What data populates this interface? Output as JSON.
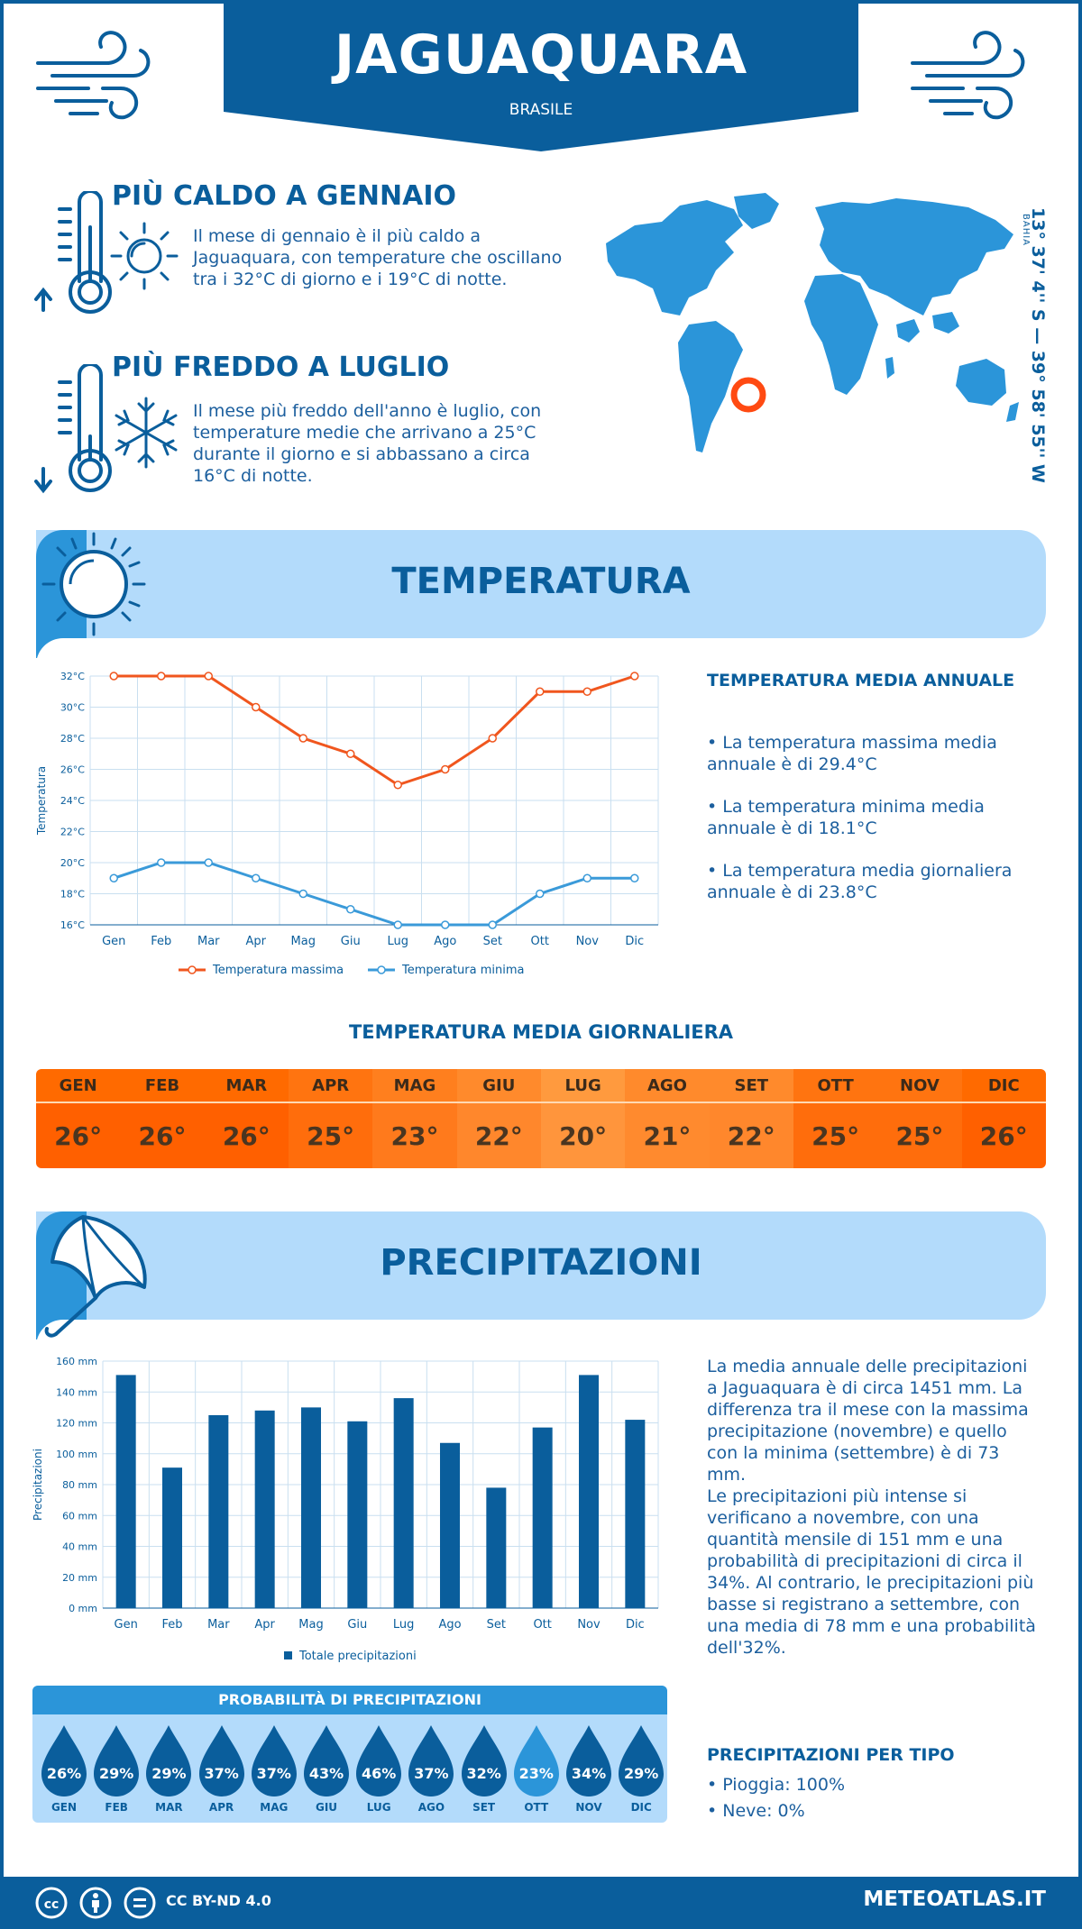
{
  "header": {
    "city": "JAGUAQUARA",
    "country": "BRASILE"
  },
  "hot": {
    "title": "PIÙ CALDO A GENNAIO",
    "text": "Il mese di gennaio è il più caldo a Jaguaquara, con temperature che oscillano tra i 32°C di giorno e i 19°C di notte."
  },
  "cold": {
    "title": "PIÙ FREDDO A LUGLIO",
    "text": "Il mese più freddo dell'anno è luglio, con temperature medie che arrivano a 25°C durante il giorno e si abbassano a circa 16°C di notte."
  },
  "location": {
    "coordinates": "13° 37' 4'' S — 39° 58' 55'' W",
    "region": "BAHIA"
  },
  "sections": {
    "temperature_title": "TEMPERATURA",
    "precipitation_title": "PRECIPITAZIONI"
  },
  "temperature_summary": {
    "title": "TEMPERATURA MEDIA ANNUALE",
    "items": [
      "• La temperatura massima media annuale è di 29.4°C",
      "• La temperatura minima media annuale è di 18.1°C",
      "• La temperatura media giornaliera annuale è di 23.8°C"
    ]
  },
  "precipitation_summary": {
    "para1": "La media annuale delle precipitazioni a Jaguaquara è di circa 1451 mm. La differenza tra il mese con la massima precipitazione (novembre) e quello con la minima (settembre) è di 73 mm.",
    "para2": "Le precipitazioni più intense si verificano a novembre, con una quantità mensile di 151 mm e una probabilità di precipitazioni di circa il 34%. Al contrario, le precipitazioni più basse si registrano a settembre, con una media di 78 mm e una probabilità dell'32%."
  },
  "daily": {
    "title": "TEMPERATURA MEDIA GIORNALIERA",
    "months": [
      "GEN",
      "FEB",
      "MAR",
      "APR",
      "MAG",
      "GIU",
      "LUG",
      "AGO",
      "SET",
      "OTT",
      "NOV",
      "DIC"
    ],
    "values": [
      "26°",
      "26°",
      "26°",
      "25°",
      "23°",
      "22°",
      "20°",
      "21°",
      "22°",
      "25°",
      "25°",
      "26°"
    ],
    "head_colors": [
      "#ff6a00",
      "#ff6a00",
      "#ff6a00",
      "#ff7410",
      "#ff7f1e",
      "#ff8a2c",
      "#ff9a3e",
      "#ff8a2c",
      "#ff8a2c",
      "#ff7410",
      "#ff7410",
      "#ff6a00"
    ],
    "val_colors": [
      "#ff6000",
      "#ff6000",
      "#ff6000",
      "#ff6d0c",
      "#ff7a1c",
      "#ff872c",
      "#ff953c",
      "#ff8a2e",
      "#ff872c",
      "#ff6d0c",
      "#ff6d0c",
      "#ff6000"
    ]
  },
  "probability": {
    "title": "PROBABILITÀ DI PRECIPITAZIONI",
    "months": [
      "GEN",
      "FEB",
      "MAR",
      "APR",
      "MAG",
      "GIU",
      "LUG",
      "AGO",
      "SET",
      "OTT",
      "NOV",
      "DIC"
    ],
    "values": [
      "26%",
      "29%",
      "29%",
      "37%",
      "37%",
      "43%",
      "46%",
      "37%",
      "32%",
      "23%",
      "34%",
      "29%"
    ]
  },
  "precip_type": {
    "title": "PRECIPITAZIONI PER TIPO",
    "rain": "• Pioggia: 100%",
    "snow": "• Neve: 0%"
  },
  "footer": {
    "license": "CC BY-ND 4.0",
    "site": "METEOATLAS.IT"
  },
  "colors": {
    "brand": "#0a5e9c",
    "max_line": "#f0561e",
    "min_line": "#3a9ad9",
    "bars": "#0a5e9c",
    "band": "#b3dbfb"
  },
  "chart_data": [
    {
      "type": "line",
      "categories": [
        "Gen",
        "Feb",
        "Mar",
        "Apr",
        "Mag",
        "Giu",
        "Lug",
        "Ago",
        "Set",
        "Ott",
        "Nov",
        "Dic"
      ],
      "series": [
        {
          "name": "Temperatura massima",
          "values": [
            32,
            32,
            32,
            30,
            28,
            27,
            25,
            26,
            28,
            31,
            31,
            32
          ]
        },
        {
          "name": "Temperatura minima",
          "values": [
            19,
            20,
            20,
            19,
            18,
            17,
            16,
            16,
            16,
            18,
            19,
            19
          ]
        }
      ],
      "ylabel": "Temperatura",
      "ylim": [
        16,
        32
      ],
      "yticks": [
        "16°C",
        "18°C",
        "20°C",
        "22°C",
        "24°C",
        "26°C",
        "28°C",
        "30°C",
        "32°C"
      ],
      "grid": true,
      "legend": "bottom"
    },
    {
      "type": "bar",
      "categories": [
        "Gen",
        "Feb",
        "Mar",
        "Apr",
        "Mag",
        "Giu",
        "Lug",
        "Ago",
        "Set",
        "Ott",
        "Nov",
        "Dic"
      ],
      "series": [
        {
          "name": "Totale precipitazioni",
          "values": [
            151,
            91,
            125,
            128,
            130,
            121,
            136,
            107,
            78,
            117,
            151,
            122
          ]
        }
      ],
      "ylabel": "Precipitazioni",
      "ylim": [
        0,
        160
      ],
      "yticks": [
        "0 mm",
        "20 mm",
        "40 mm",
        "60 mm",
        "80 mm",
        "100 mm",
        "120 mm",
        "140 mm",
        "160 mm"
      ],
      "grid": true,
      "legend": "bottom"
    }
  ]
}
